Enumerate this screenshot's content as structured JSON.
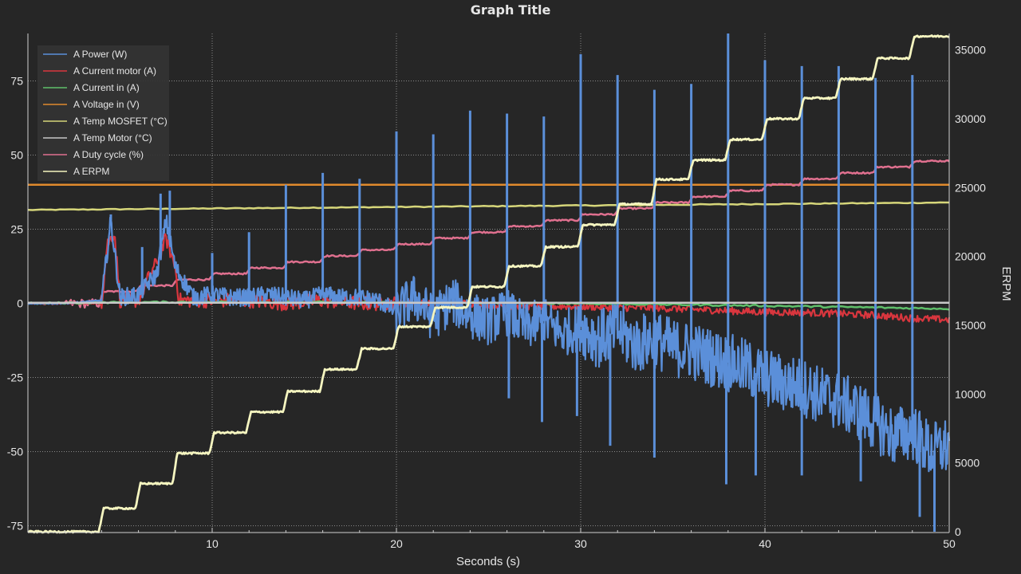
{
  "chart_data": {
    "type": "line",
    "title": "Graph Title",
    "xlabel": "Seconds (s)",
    "ylabel": "",
    "y2label": "ERPM",
    "xlim": [
      0,
      50
    ],
    "ylim": [
      -77,
      91
    ],
    "y2lim": [
      0,
      36200
    ],
    "x_ticks": [
      10,
      20,
      30,
      40,
      50
    ],
    "y_ticks": [
      -75,
      -50,
      -25,
      0,
      25,
      50,
      75
    ],
    "y2_ticks": [
      0,
      5000,
      10000,
      15000,
      20000,
      25000,
      30000,
      35000
    ],
    "grid": true,
    "legend_position": "top-left",
    "series": [
      {
        "name": "A Power (W)",
        "color": "#5b8fd9",
        "axis": "left",
        "x": [
          0,
          2,
          4,
          4.5,
          5,
          6,
          7,
          7.5,
          8,
          9,
          10,
          11,
          12,
          13,
          14,
          15,
          16,
          17,
          18,
          19,
          20,
          21,
          22,
          23,
          24,
          25,
          26,
          27,
          28,
          29,
          30,
          31,
          32,
          33,
          34,
          35,
          36,
          37,
          38,
          39,
          40,
          41,
          42,
          43,
          44,
          45,
          46,
          47,
          48,
          49,
          50
        ],
        "values": [
          0,
          0,
          1,
          28,
          2,
          3,
          10,
          28,
          12,
          2,
          3,
          2,
          2,
          3,
          2,
          1,
          3,
          2,
          2,
          1,
          -3,
          2,
          -5,
          1,
          -4,
          -6,
          -3,
          -8,
          -6,
          -10,
          -8,
          -12,
          -9,
          -14,
          -12,
          -15,
          -16,
          -18,
          -20,
          -22,
          -25,
          -27,
          -28,
          -31,
          -33,
          -36,
          -40,
          -45,
          -43,
          -50,
          -48
        ],
        "spikes": [
          {
            "x": 4.5,
            "y": 30
          },
          {
            "x": 6.2,
            "y": 19
          },
          {
            "x": 7.2,
            "y": 37
          },
          {
            "x": 7.7,
            "y": 38
          },
          {
            "x": 10,
            "y": 17
          },
          {
            "x": 12,
            "y": 24
          },
          {
            "x": 14,
            "y": 40
          },
          {
            "x": 16,
            "y": 44
          },
          {
            "x": 18,
            "y": 42
          },
          {
            "x": 20,
            "y": 58
          },
          {
            "x": 22,
            "y": 57
          },
          {
            "x": 24,
            "y": 65
          },
          {
            "x": 26,
            "y": 64
          },
          {
            "x": 28,
            "y": 63
          },
          {
            "x": 30,
            "y": 84
          },
          {
            "x": 32,
            "y": 77
          },
          {
            "x": 34,
            "y": 72
          },
          {
            "x": 36,
            "y": 74
          },
          {
            "x": 38,
            "y": 91
          },
          {
            "x": 40,
            "y": 82
          },
          {
            "x": 42,
            "y": 80
          },
          {
            "x": 44,
            "y": 80
          },
          {
            "x": 46,
            "y": 76
          },
          {
            "x": 48,
            "y": 77
          },
          {
            "x": 26.1,
            "y": -32
          },
          {
            "x": 27.9,
            "y": -40
          },
          {
            "x": 29.8,
            "y": -38
          },
          {
            "x": 31.6,
            "y": -48
          },
          {
            "x": 34,
            "y": -52
          },
          {
            "x": 37.9,
            "y": -61
          },
          {
            "x": 39.5,
            "y": -58
          },
          {
            "x": 42,
            "y": -58
          },
          {
            "x": 45.2,
            "y": -60
          },
          {
            "x": 48.4,
            "y": -72
          },
          {
            "x": 49.2,
            "y": -77
          }
        ]
      },
      {
        "name": "A Current motor (A)",
        "color": "#d9363e",
        "axis": "left",
        "x": [
          0,
          2,
          4,
          4.3,
          4.7,
          5,
          6,
          6.5,
          7,
          7.5,
          8,
          8.2,
          10,
          12,
          14,
          16,
          18,
          20,
          22,
          24,
          26,
          28,
          30,
          32,
          34,
          36,
          38,
          40,
          42,
          44,
          46,
          48,
          50
        ],
        "values": [
          0,
          0,
          0,
          20,
          24,
          1,
          1,
          8,
          14,
          22,
          12,
          1,
          1,
          1,
          0,
          1,
          0,
          0,
          0,
          0,
          -1,
          -1,
          -1,
          -1.5,
          -1.5,
          -2,
          -2.5,
          -3,
          -3,
          -3.5,
          -4,
          -5,
          -5.5
        ]
      },
      {
        "name": "A Current in (A)",
        "color": "#5fbf6a",
        "axis": "left",
        "x": [
          0,
          4,
          10,
          20,
          30,
          40,
          50
        ],
        "values": [
          0,
          0.3,
          0.5,
          0.3,
          0,
          -0.8,
          -1.8
        ]
      },
      {
        "name": "A Voltage in (V)",
        "color": "#e08a2c",
        "axis": "left",
        "x": [
          0,
          50
        ],
        "values": [
          40,
          40
        ]
      },
      {
        "name": "A Temp MOSFET (°C)",
        "color": "#d6d67a",
        "axis": "left",
        "x": [
          0,
          50
        ],
        "values": [
          31.5,
          34
        ]
      },
      {
        "name": "A Temp Motor (°C)",
        "color": "#c8c8c8",
        "axis": "left",
        "x": [
          0,
          50
        ],
        "values": [
          0.2,
          0.2
        ]
      },
      {
        "name": "A Duty cycle (%)",
        "color": "#e0708f",
        "axis": "left",
        "x": [
          0,
          2,
          2.1,
          4,
          4.1,
          6.1,
          8.1,
          10.1,
          12.1,
          14.1,
          16.1,
          18.1,
          20.1,
          22.1,
          24.1,
          26.1,
          28.1,
          30.1,
          32.1,
          34.1,
          36.1,
          38.1,
          40.1,
          42.1,
          44.1,
          46.1,
          48.1,
          50
        ],
        "values": [
          0,
          0,
          0,
          0,
          4,
          6,
          8,
          10,
          12,
          14,
          16,
          18,
          20,
          22,
          24,
          26,
          28,
          30,
          32,
          34,
          36,
          38,
          40,
          42,
          44,
          46,
          48,
          48
        ]
      },
      {
        "name": "A ERPM",
        "color": "#f5f5c0",
        "axis": "right",
        "x": [
          0,
          4.1,
          6.1,
          8.1,
          10.1,
          12.1,
          14.1,
          16.1,
          18.1,
          20.1,
          22.1,
          24.1,
          26.1,
          28.1,
          30.1,
          32.1,
          34.1,
          36.1,
          38.1,
          40.1,
          42.1,
          44.1,
          46.1,
          48.1,
          50
        ],
        "values": [
          0,
          1700,
          3500,
          5700,
          7200,
          8700,
          10200,
          11800,
          13300,
          14900,
          16300,
          17800,
          19300,
          20700,
          22300,
          23800,
          25600,
          27000,
          28500,
          30000,
          31500,
          32900,
          34400,
          36000,
          36000
        ]
      }
    ]
  }
}
